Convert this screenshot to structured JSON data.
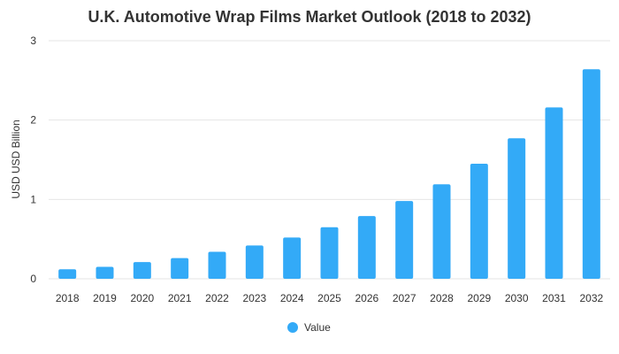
{
  "chart_data": {
    "type": "bar",
    "title": "U.K. Automotive Wrap Films Market Outlook (2018 to 2032)",
    "xlabel": "",
    "ylabel": "USD USD Billion",
    "categories": [
      "2018",
      "2019",
      "2020",
      "2021",
      "2022",
      "2023",
      "2024",
      "2025",
      "2026",
      "2027",
      "2028",
      "2029",
      "2030",
      "2031",
      "2032"
    ],
    "series": [
      {
        "name": "Value",
        "values": [
          0.12,
          0.15,
          0.21,
          0.26,
          0.34,
          0.42,
          0.52,
          0.65,
          0.79,
          0.98,
          1.19,
          1.45,
          1.77,
          2.16,
          2.64
        ]
      }
    ],
    "ylim": [
      0,
      3
    ],
    "yticks": [
      "0",
      "1",
      "2",
      "3"
    ],
    "grid": true,
    "legend": "bottom-center",
    "colors": {
      "bar": "#33aaf7",
      "grid": "#e6e6e6",
      "text": "#333333"
    }
  }
}
